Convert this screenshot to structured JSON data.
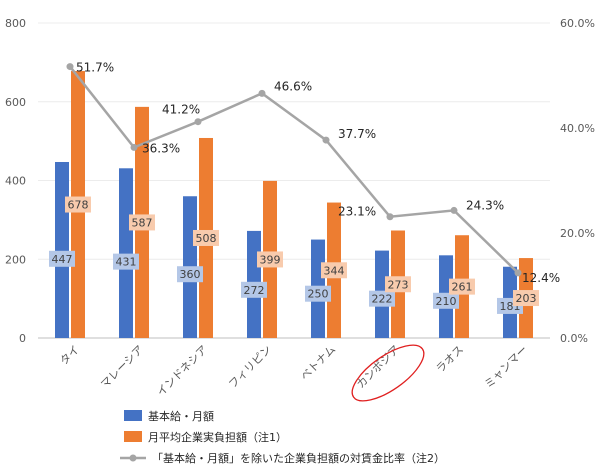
{
  "chart_data": {
    "type": "bar",
    "categories": [
      "タイ",
      "マレーシア",
      "インドネシア",
      "フィリピン",
      "ベトナム",
      "カンボジア",
      "ラオス",
      "ミャンマー"
    ],
    "series": [
      {
        "name": "基本給・月額",
        "values": [
          447,
          431,
          360,
          272,
          250,
          222,
          210,
          181
        ],
        "color": "#4472c4",
        "label_bg": "#b4c7e7"
      },
      {
        "name": "月平均企業実負担額（注1）",
        "values": [
          678,
          587,
          508,
          399,
          344,
          273,
          261,
          203
        ],
        "color": "#ed7d31",
        "label_bg": "#f8cbad"
      },
      {
        "name": "「基本給・月額」を除いた企業負担額の対賃金比率（注2）",
        "type": "line",
        "axis": "right",
        "values": [
          51.7,
          36.3,
          41.2,
          46.6,
          37.7,
          23.1,
          24.3,
          12.4
        ],
        "labels": [
          "51.7%",
          "36.3%",
          "41.2%",
          "46.6%",
          "37.7%",
          "23.1%",
          "24.3%",
          "12.4%"
        ],
        "color": "#a5a5a5"
      }
    ],
    "y_left": {
      "min": 0,
      "max": 800,
      "ticks": [
        "0",
        "200",
        "400",
        "600",
        "800"
      ]
    },
    "y_right": {
      "min": 0,
      "max": 60,
      "ticks": [
        "0.0%",
        "20.0%",
        "40.0%",
        "60.0%"
      ]
    },
    "highlight_category": "カンボジア",
    "highlight_color": "#e02020",
    "legend_position": "bottom"
  }
}
